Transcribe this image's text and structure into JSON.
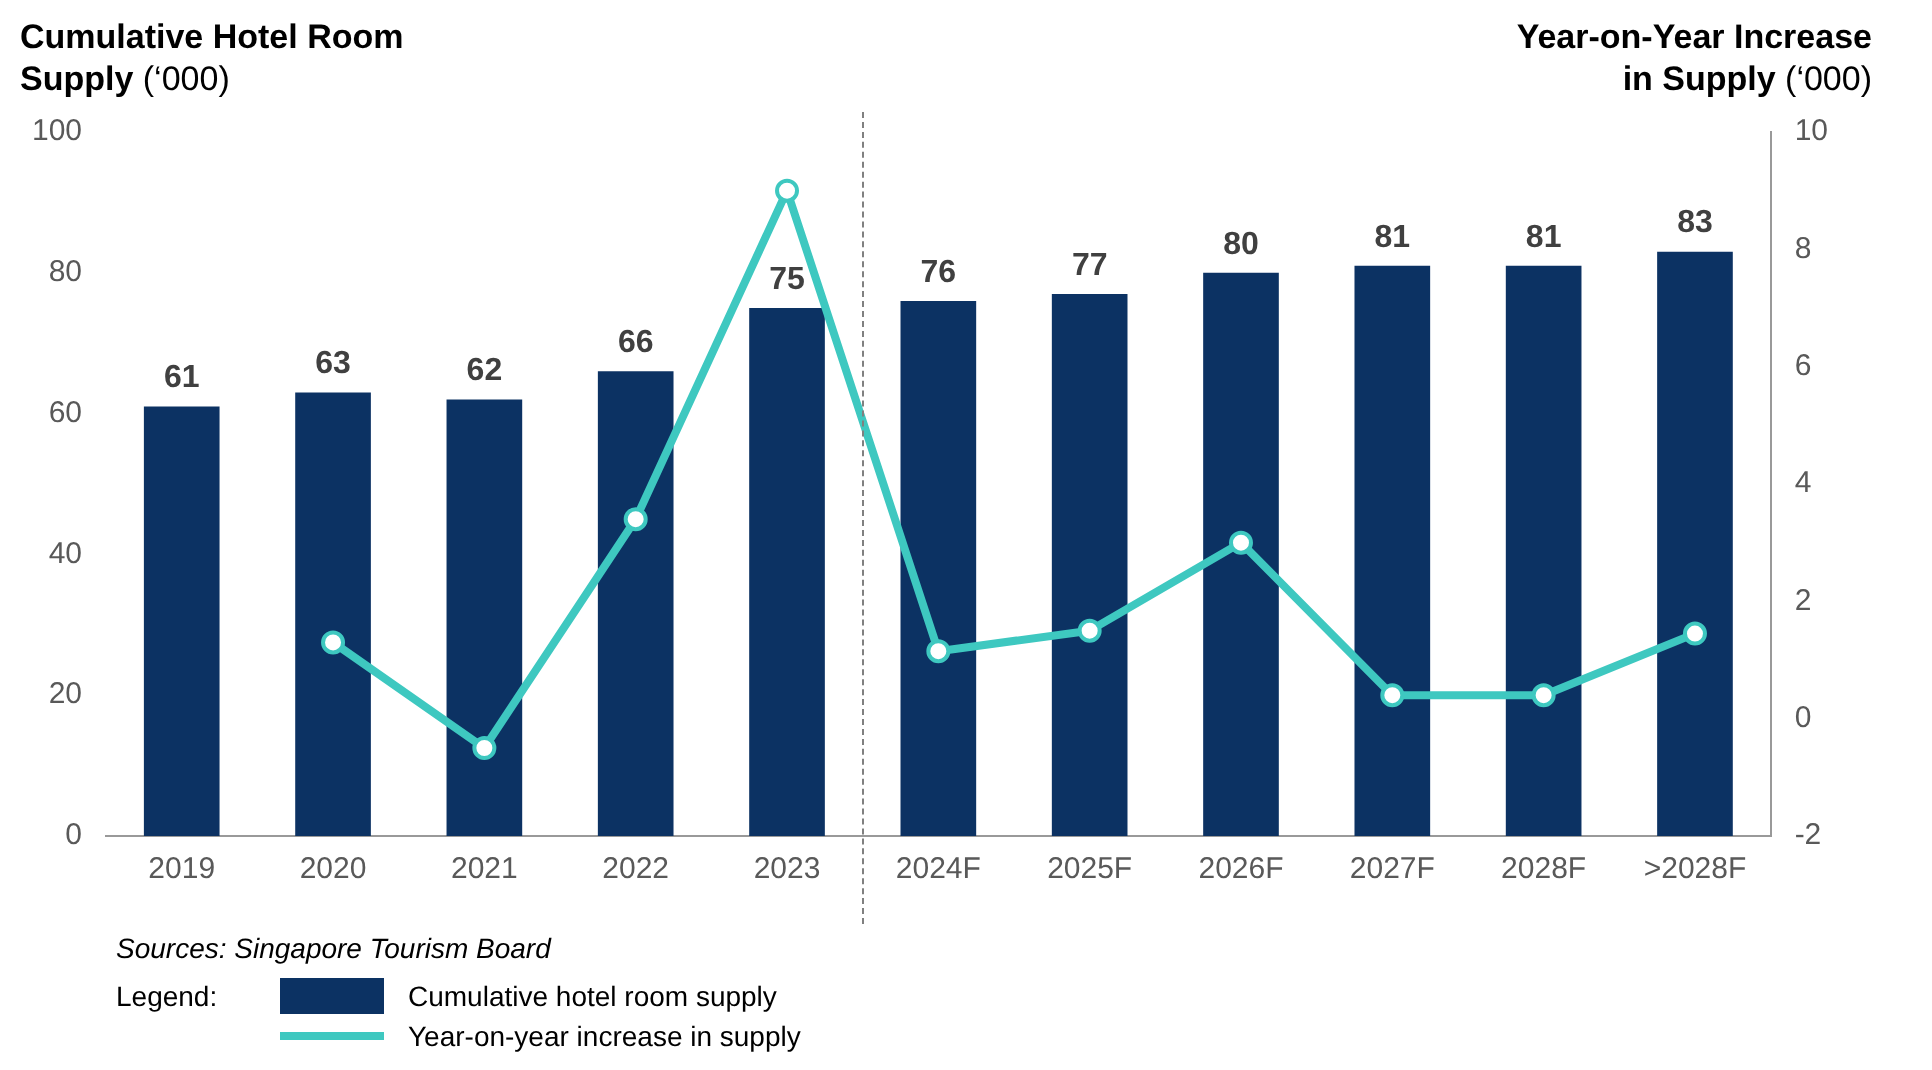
{
  "chart_data": {
    "type": "bar",
    "ylabel": "Cumulative Hotel Room Supply (‘000)",
    "y2label": "Year-on-Year Increase in Supply (‘000)",
    "legend_title": "Legend:",
    "annotations": [
      "Sources: Singapore Tourism Board"
    ],
    "categories": [
      "2019",
      "2020",
      "2021",
      "2022",
      "2023",
      "2024F",
      "2025F",
      "2026F",
      "2027F",
      "2028F",
      ">2028F"
    ],
    "series": [
      {
        "name": "Cumulative hotel room supply",
        "color": "#0c3263",
        "values": [
          61,
          63,
          62,
          66,
          75,
          76,
          77,
          80,
          81,
          81,
          83
        ],
        "value_labels": [
          "61",
          "63",
          "62",
          "66",
          "75",
          "76",
          "77",
          "80",
          "81",
          "81",
          "83"
        ]
      },
      {
        "name": "Year-on-year increase in supply",
        "type": "line",
        "axis": "y2",
        "color": "#3ec8c0",
        "values": [
          null,
          1.3,
          -0.5,
          3.4,
          9.0,
          1.15,
          1.5,
          3.0,
          0.4,
          0.4,
          1.45
        ]
      }
    ],
    "ylim": [
      0,
      100
    ],
    "yticks": [
      0,
      20,
      40,
      60,
      80,
      100
    ],
    "y2lim": [
      -2,
      10
    ],
    "y2ticks": [
      -2,
      0,
      2,
      4,
      6,
      8,
      10
    ],
    "grid": false,
    "legend": "bottom",
    "marker": "circle",
    "line_style": "solid"
  }
}
